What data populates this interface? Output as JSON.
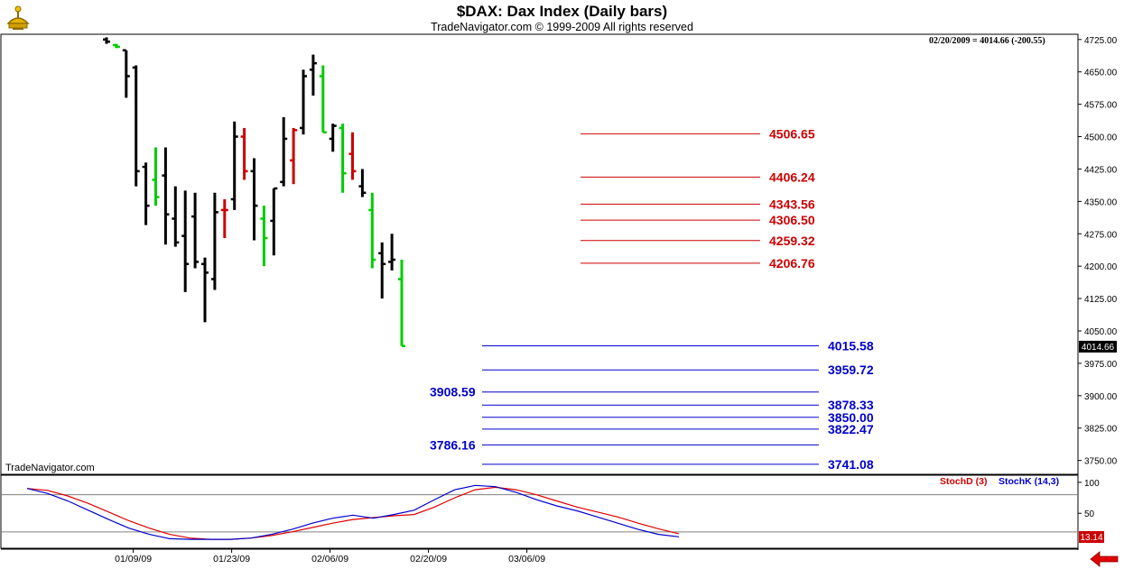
{
  "header": {
    "title": "$DAX:  Dax Index  (Daily bars)",
    "subtitle": "TradeNavigator.com © 1999-2009 All rights reserved"
  },
  "watermark": "TradeNavigator.com",
  "last_quote": "02/20/2009 = 4014.66 (-200.55)",
  "colors": {
    "red_level": "#cc0000",
    "blue_level": "#0000cc",
    "up_bar": "#00cc00",
    "down_bar": "#cc0000",
    "normal_bar": "#000000"
  },
  "chart_data": [
    {
      "type": "ohlc",
      "ylim": [
        3720,
        4735
      ],
      "yticks": [
        3750,
        3825,
        3900,
        3975,
        4050,
        4125,
        4200,
        4275,
        4350,
        4425,
        4500,
        4575,
        4650,
        4725
      ],
      "xtick_labels": [
        {
          "label": "01/09/09",
          "index": 4
        },
        {
          "label": "01/23/09",
          "index": 14
        },
        {
          "label": "02/06/09",
          "index": 24
        },
        {
          "label": "02/20/09",
          "index": 34
        },
        {
          "label": "03/06/09",
          "index": 44
        }
      ],
      "last_value_label": "4014.66",
      "bars": [
        {
          "h": 4730,
          "l": 4715,
          "o": 4725,
          "c": 4720,
          "color": "black"
        },
        {
          "h": 4715,
          "l": 4705,
          "o": 4712,
          "c": 4708,
          "color": "green"
        },
        {
          "h": 4700,
          "l": 4590,
          "o": 4700,
          "c": 4640,
          "color": "black"
        },
        {
          "h": 4665,
          "l": 4385,
          "o": 4660,
          "c": 4420,
          "color": "black"
        },
        {
          "h": 4440,
          "l": 4295,
          "o": 4430,
          "c": 4340,
          "color": "black"
        },
        {
          "h": 4475,
          "l": 4340,
          "o": 4400,
          "c": 4360,
          "color": "green"
        },
        {
          "h": 4475,
          "l": 4250,
          "o": 4410,
          "c": 4320,
          "color": "black"
        },
        {
          "h": 4385,
          "l": 4245,
          "o": 4310,
          "c": 4255,
          "color": "black"
        },
        {
          "h": 4375,
          "l": 4140,
          "o": 4270,
          "c": 4205,
          "color": "black"
        },
        {
          "h": 4370,
          "l": 4195,
          "o": 4315,
          "c": 4210,
          "color": "black"
        },
        {
          "h": 4220,
          "l": 4070,
          "o": 4205,
          "c": 4185,
          "color": "black"
        },
        {
          "h": 4370,
          "l": 4145,
          "o": 4170,
          "c": 4325,
          "color": "black"
        },
        {
          "h": 4355,
          "l": 4265,
          "o": 4330,
          "c": 4330,
          "color": "red"
        },
        {
          "h": 4535,
          "l": 4330,
          "o": 4355,
          "c": 4500,
          "color": "black"
        },
        {
          "h": 4520,
          "l": 4400,
          "o": 4500,
          "c": 4420,
          "color": "red"
        },
        {
          "h": 4450,
          "l": 4260,
          "o": 4420,
          "c": 4340,
          "color": "black"
        },
        {
          "h": 4340,
          "l": 4200,
          "o": 4310,
          "c": 4265,
          "color": "green"
        },
        {
          "h": 4380,
          "l": 4225,
          "o": 4305,
          "c": 4380,
          "color": "black"
        },
        {
          "h": 4545,
          "l": 4385,
          "o": 4395,
          "c": 4495,
          "color": "black"
        },
        {
          "h": 4520,
          "l": 4390,
          "o": 4445,
          "c": 4515,
          "color": "red"
        },
        {
          "h": 4655,
          "l": 4505,
          "o": 4520,
          "c": 4640,
          "color": "black"
        },
        {
          "h": 4690,
          "l": 4595,
          "o": 4655,
          "c": 4670,
          "color": "black"
        },
        {
          "h": 4665,
          "l": 4510,
          "o": 4640,
          "c": 4510,
          "color": "green"
        },
        {
          "h": 4530,
          "l": 4465,
          "o": 4495,
          "c": 4525,
          "color": "black"
        },
        {
          "h": 4530,
          "l": 4370,
          "o": 4520,
          "c": 4415,
          "color": "green"
        },
        {
          "h": 4510,
          "l": 4400,
          "o": 4460,
          "c": 4420,
          "color": "red"
        },
        {
          "h": 4425,
          "l": 4360,
          "o": 4385,
          "c": 4370,
          "color": "black"
        },
        {
          "h": 4370,
          "l": 4195,
          "o": 4330,
          "c": 4215,
          "color": "green"
        },
        {
          "h": 4255,
          "l": 4125,
          "o": 4230,
          "c": 4205,
          "color": "black"
        },
        {
          "h": 4275,
          "l": 4190,
          "o": 4210,
          "c": 4215,
          "color": "black"
        },
        {
          "h": 4215,
          "l": 4015,
          "o": 4170,
          "c": 4015,
          "color": "green"
        }
      ],
      "levels": [
        {
          "value": 4506.65,
          "label": "4506.65",
          "color": "red",
          "x_from": 643,
          "x_to": 842,
          "label_side": "right"
        },
        {
          "value": 4406.24,
          "label": "4406.24",
          "color": "red",
          "x_from": 643,
          "x_to": 842,
          "label_side": "right"
        },
        {
          "value": 4343.56,
          "label": "4343.56",
          "color": "red",
          "x_from": 643,
          "x_to": 842,
          "label_side": "right"
        },
        {
          "value": 4306.5,
          "label": "4306.50",
          "color": "red",
          "x_from": 643,
          "x_to": 842,
          "label_side": "right"
        },
        {
          "value": 4259.32,
          "label": "4259.32",
          "color": "red",
          "x_from": 643,
          "x_to": 842,
          "label_side": "right"
        },
        {
          "value": 4206.76,
          "label": "4206.76",
          "color": "red",
          "x_from": 643,
          "x_to": 842,
          "label_side": "right"
        },
        {
          "value": 4015.58,
          "label": "4015.58",
          "color": "blue",
          "x_from": 534,
          "x_to": 907,
          "label_side": "right"
        },
        {
          "value": 3959.72,
          "label": "3959.72",
          "color": "blue",
          "x_from": 534,
          "x_to": 907,
          "label_side": "right"
        },
        {
          "value": 3908.59,
          "label": "3908.59",
          "color": "blue",
          "x_from": 534,
          "x_to": 907,
          "label_side": "left"
        },
        {
          "value": 3878.33,
          "label": "3878.33",
          "color": "blue",
          "x_from": 534,
          "x_to": 907,
          "label_side": "right"
        },
        {
          "value": 3850.0,
          "label": "3850.00",
          "color": "blue",
          "x_from": 534,
          "x_to": 907,
          "label_side": "right"
        },
        {
          "value": 3822.47,
          "label": "3822.47",
          "color": "blue",
          "x_from": 534,
          "x_to": 907,
          "label_side": "right"
        },
        {
          "value": 3786.16,
          "label": "3786.16",
          "color": "blue",
          "x_from": 534,
          "x_to": 907,
          "label_side": "left"
        },
        {
          "value": 3741.08,
          "label": "3741.08",
          "color": "blue",
          "x_from": 534,
          "x_to": 907,
          "label_side": "right"
        }
      ]
    },
    {
      "type": "line",
      "ylim": [
        -5,
        110
      ],
      "yticks": [
        100,
        50
      ],
      "hlines": [
        80,
        20
      ],
      "last_value_label": "13.14",
      "series": [
        {
          "name": "StochD (3)",
          "color": "red",
          "values": [
            90,
            87,
            78,
            66,
            52,
            38,
            26,
            16,
            10,
            8,
            8,
            10,
            14,
            20,
            27,
            34,
            40,
            43,
            46,
            48,
            60,
            75,
            88,
            92,
            88,
            80,
            70,
            60,
            52,
            44,
            34,
            25,
            17
          ]
        },
        {
          "name": "StochK (14,3)",
          "color": "blue",
          "values": [
            90,
            82,
            70,
            55,
            40,
            26,
            16,
            9,
            8,
            8,
            8,
            10,
            16,
            24,
            34,
            42,
            47,
            42,
            48,
            55,
            72,
            88,
            95,
            93,
            84,
            72,
            62,
            54,
            44,
            34,
            24,
            16,
            12
          ]
        }
      ]
    }
  ]
}
